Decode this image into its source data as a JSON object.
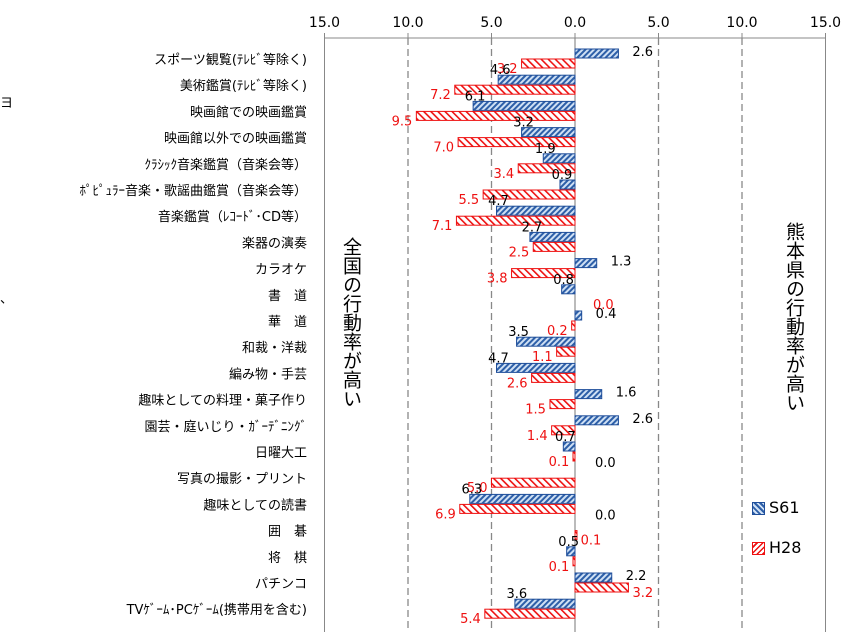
{
  "chart_data": {
    "type": "bar",
    "orientation": "horizontal",
    "x_ticks": [
      "15.0",
      "10.0",
      "5.0",
      "0.0",
      "5.0",
      "10.0",
      "15.0"
    ],
    "xlim": [
      -15,
      15
    ],
    "grid": true,
    "left_annotation": "全国の行動率が高い",
    "right_annotation": "熊本県の行動率が高い",
    "legend_position": "right",
    "categories": [
      "スポーツ観覧(ﾃﾚﾋﾞ等除く)",
      "美術鑑賞(ﾃﾚﾋﾞ等除く)",
      "映画館での映画鑑賞",
      "映画館以外での映画鑑賞",
      "ｸﾗｼｯｸ音楽鑑賞（音楽会等）",
      "ﾎﾟﾋﾟｭﾗｰ音楽・歌謡曲鑑賞（音楽会等）",
      "音楽鑑賞（ﾚｺｰﾄﾞ･CD等）",
      "楽器の演奏",
      "カラオケ",
      "書　道",
      "華　道",
      "和裁・洋裁",
      "編み物・手芸",
      "趣味としての料理・菓子作り",
      "園芸・庭いじり・ｶﾞｰﾃﾞﾆﾝｸﾞ",
      "日曜大工",
      "写真の撮影・プリント",
      "趣味としての読書",
      "囲　碁",
      "将　棋",
      "パチンコ",
      "TVｹﾞｰﾑ･PCｹﾞｰﾑ(携帯用を含む)"
    ],
    "series": [
      {
        "name": "S61",
        "color": "#2d5fa8",
        "values": [
          2.6,
          -4.6,
          -6.1,
          -3.2,
          -1.9,
          -0.9,
          -4.7,
          -2.7,
          1.3,
          -0.8,
          0.4,
          -3.5,
          -4.7,
          1.6,
          2.6,
          -0.7,
          0.0,
          -6.3,
          0.0,
          -0.5,
          2.2,
          -3.6
        ],
        "labels": [
          "2.6",
          "4.6",
          "6.1",
          "3.2",
          "1.9",
          "0.9",
          "4.7",
          "2.7",
          "1.3",
          "0.8",
          "0.4",
          "3.5",
          "4.7",
          "1.6",
          "2.6",
          "0.7",
          "0.0",
          "6.3",
          "0.0",
          "0.5",
          "2.2",
          "3.6"
        ]
      },
      {
        "name": "H28",
        "color": "#ee1111",
        "values": [
          -3.2,
          -7.2,
          -9.5,
          -7.0,
          -3.4,
          -5.5,
          -7.1,
          -2.5,
          -3.8,
          0.0,
          -0.2,
          -1.1,
          -2.6,
          -1.5,
          -1.4,
          -0.1,
          -5.0,
          -6.9,
          0.1,
          -0.1,
          3.2,
          -5.4
        ],
        "labels": [
          "3.2",
          "7.2",
          "9.5",
          "7.0",
          "3.4",
          "5.5",
          "7.1",
          "2.5",
          "3.8",
          "0.0",
          "0.2",
          "1.1",
          "2.6",
          "1.5",
          "1.4",
          "0.1",
          "5.0",
          "6.9",
          "0.1",
          "0.1",
          "3.2",
          "5.4"
        ]
      }
    ]
  },
  "edge_marks": {
    "left_top": "ヨ",
    "left_mid": "、"
  }
}
